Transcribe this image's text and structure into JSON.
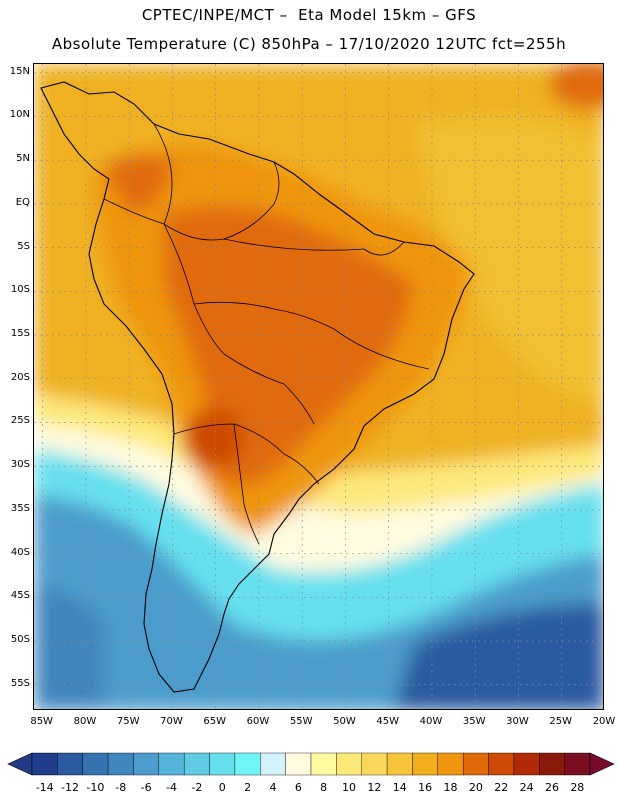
{
  "header": {
    "line1": "CPTEC/INPE/MCT –  Eta Model 15km – GFS",
    "line2": "Absolute Temperature (C) 850hPa – 17/10/2020 12UTC fct=255h"
  },
  "map": {
    "lat_labels": [
      "15N",
      "10N",
      "5N",
      "EQ",
      "5S",
      "10S",
      "15S",
      "20S",
      "25S",
      "30S",
      "35S",
      "40S",
      "45S",
      "50S",
      "55S"
    ],
    "lat_values": [
      15,
      10,
      5,
      0,
      -5,
      -10,
      -15,
      -20,
      -25,
      -30,
      -35,
      -40,
      -45,
      -50,
      -55
    ],
    "lon_labels": [
      "85W",
      "80W",
      "75W",
      "70W",
      "65W",
      "60W",
      "55W",
      "50W",
      "45W",
      "40W",
      "35W",
      "30W",
      "25W",
      "20W"
    ],
    "lon_values": [
      -85,
      -80,
      -75,
      -70,
      -65,
      -60,
      -55,
      -50,
      -45,
      -40,
      -35,
      -30,
      -25,
      -20
    ],
    "lon_range": [
      -86,
      -20
    ],
    "lat_range": [
      -58,
      16
    ]
  },
  "colorbar": {
    "labels": [
      "-14",
      "-12",
      "-10",
      "-8",
      "-6",
      "-4",
      "-2",
      "0",
      "2",
      "4",
      "6",
      "8",
      "10",
      "12",
      "14",
      "16",
      "18",
      "20",
      "22",
      "24",
      "26",
      "28"
    ],
    "colors": [
      "#1f3d8c",
      "#2a5aa0",
      "#3572b0",
      "#4086bf",
      "#4b9ccc",
      "#56b3d9",
      "#5fcbe4",
      "#66e0ee",
      "#6ff5f8",
      "#d2f3fb",
      "#fffbe0",
      "#fffba0",
      "#fde97a",
      "#fbd85a",
      "#f6c43a",
      "#f1ad1a",
      "#f09510",
      "#e06a08",
      "#cf4a05",
      "#b02a05",
      "#8a1a0a",
      "#780e20"
    ],
    "under_color": "#233a87",
    "over_color": "#7a0a2a"
  }
}
